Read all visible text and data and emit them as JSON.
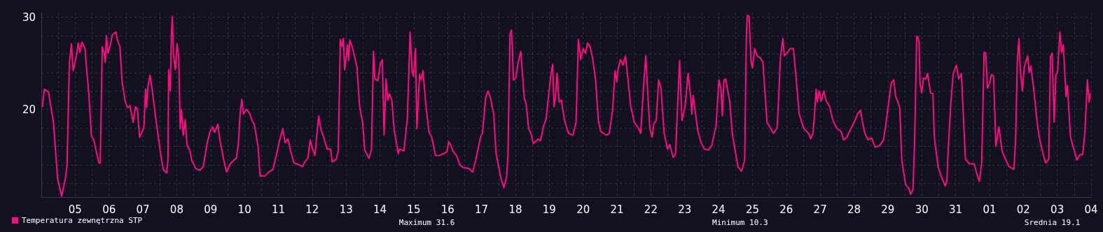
{
  "chart_data": {
    "type": "line",
    "x": [
      "--07-04T12:43",
      "--07-04T14:10",
      "--07-04T17:02",
      "--07-04T20:38",
      "--07-04T23:31",
      "--07-05T02:24",
      "--07-05T05:17",
      "--07-05T06:14",
      "--07-05T07:55",
      "--07-05T09:22",
      "--07-05T10:34",
      "--07-05T12:43",
      "--07-05T14:10",
      "--07-05T15:22",
      "--07-05T16:48",
      "--07-05T18:58",
      "--07-05T19:55",
      "--07-05T21:36",
      "--07-05T22:48",
      "--07-05T23:31",
      "--07-06T01:12",
      "--07-06T02:53",
      "--07-06T04:48",
      "--07-06T05:46",
      "--07-06T07:12",
      "--07-06T08:38",
      "--07-06T09:22",
      "--07-06T10:05",
      "--07-06T11:17",
      "--07-06T12:58",
      "--07-06T14:24",
      "--07-06T16:48",
      "--07-06T18:00",
      "--07-06T19:41",
      "--07-06T21:22",
      "--07-06T23:31",
      "--07-07T01:12",
      "--07-07T02:53",
      "--07-07T05:02",
      "--07-07T06:43",
      "--07-07T08:10",
      "--07-07T09:36",
      "--07-07T11:31",
      "--07-07T12:43",
      "--07-07T13:55",
      "--07-07T14:38",
      "--07-07T15:36",
      "--07-07T17:02",
      "--07-07T18:29",
      "--07-07T20:53",
      "--07-08T00:14",
      "--07-08T02:24",
      "--07-08T04:48",
      "--07-08T05:46",
      "--07-08T06:14",
      "--07-08T07:26",
      "--07-08T08:10",
      "--07-08T08:53",
      "--07-08T09:36",
      "--07-08T11:02",
      "--07-08T12:14",
      "--07-08T13:26",
      "--07-08T14:24",
      "--07-08T15:22",
      "--07-08T16:34",
      "--07-08T18:00",
      "--07-08T19:12",
      "--07-08T21:22",
      "--07-08T22:34",
      "--07-09T01:26",
      "--07-09T04:19",
      "--07-09T06:43",
      "--07-09T09:22",
      "--07-09T11:31",
      "--07-09T13:26",
      "--07-09T14:53",
      "--07-09T17:02",
      "--07-09T18:43",
      "--07-09T21:22",
      "--07-09T23:17",
      "--07-10T01:55",
      "--07-10T04:19",
      "--07-10T06:14",
      "--07-10T07:41",
      "--07-10T08:53",
      "--07-10T10:05",
      "--07-10T11:17",
      "--07-10T13:26",
      "--07-10T15:36",
      "--07-10T17:17",
      "--07-10T18:58",
      "--07-10T21:36",
      "--07-10T23:02",
      "--07-11T02:38",
      "--07-11T05:02",
      "--07-11T08:10",
      "--07-11T10:48",
      "--07-11T13:26",
      "--07-11T15:07",
      "--07-11T16:48",
      "--07-11T18:43",
      "--07-11T20:53",
      "--07-11T23:02",
      "--07-12T02:38",
      "--07-12T05:02",
      "--07-12T06:43",
      "--07-12T08:53",
      "--07-12T10:34",
      "--07-12T12:14",
      "--07-12T13:55",
      "--07-12T16:34",
      "--07-12T18:14",
      "--07-12T19:55",
      "--07-12T22:34",
      "--07-13T00:58",
      "--07-13T02:10",
      "--07-13T05:02",
      "--07-13T06:29",
      "--07-13T07:55",
      "--07-13T09:07",
      "--07-13T10:05",
      "--07-13T11:02",
      "--07-13T12:58",
      "--07-13T13:41",
      "--07-13T14:38",
      "--07-13T16:34",
      "--07-13T19:41",
      "--07-13T21:36",
      "--07-13T23:46",
      "--07-14T01:12",
      "--07-14T04:19",
      "--07-14T06:00",
      "--07-14T07:26",
      "--07-14T08:24",
      "--07-14T10:34",
      "--07-14T12:14",
      "--07-14T13:41",
      "--07-14T14:53",
      "--07-14T16:19",
      "--07-14T17:31",
      "--07-14T18:43",
      "--07-14T20:24",
      "--07-14T22:05",
      "--07-15T00:58",
      "--07-15T01:55",
      "--07-15T05:02",
      "--07-15T07:26",
      "--07-15T09:22",
      "--07-15T10:48",
      "--07-15T11:46",
      "--07-15T13:12",
      "--07-15T14:10",
      "--07-15T16:05",
      "--07-15T17:17",
      "--07-15T18:29",
      "--07-15T20:38",
      "--07-15T22:48",
      "--07-16T00:43",
      "--07-16T03:22",
      "--07-16T06:00",
      "--07-16T09:07",
      "--07-16T11:31",
      "--07-16T12:43",
      "--07-16T14:24",
      "--07-16T15:36",
      "--07-16T18:14",
      "--07-16T20:38",
      "--07-16T23:02",
      "--07-17T02:53",
      "--07-17T05:46",
      "--07-17T08:10",
      "--07-17T11:17",
      "--07-17T12:43",
      "--07-17T14:53",
      "--07-17T16:34",
      "--07-17T18:14",
      "--07-17T20:38",
      "--07-17T22:19",
      "--07-18T01:41",
      "--07-18T03:50",
      "--07-18T05:46",
      "--07-18T06:43",
      "--07-18T08:10",
      "--07-18T09:07",
      "--07-18T09:50",
      "--07-18T10:34",
      "--07-18T12:14",
      "--07-18T13:55",
      "--07-18T15:50",
      "--07-18T18:14",
      "--07-18T19:41",
      "--07-18T21:22",
      "--07-18T23:02",
      "--07-19T00:43",
      "--07-19T04:05",
      "--07-19T05:46",
      "--07-19T08:10",
      "--07-19T09:50",
      "--07-19T10:34",
      "--07-19T13:12",
      "--07-19T14:24",
      "--07-19T15:22",
      "--07-19T16:19",
      "--07-19T17:31",
      "--07-19T18:58",
      "--07-19T20:38",
      "--07-19T22:48",
      "--07-20T01:41",
      "--07-20T04:48",
      "--07-20T06:58",
      "--07-20T08:38",
      "--07-20T10:19",
      "--07-20T12:00",
      "--07-20T13:41",
      "--07-20T15:07",
      "--07-20T17:02",
      "--07-20T18:58",
      "--07-20T20:53",
      "--07-20T22:48",
      "--07-21T00:29",
      "--07-21T04:34",
      "--07-21T06:29",
      "--07-21T08:53",
      "--07-21T10:34",
      "--07-21T11:46",
      "--07-21T12:43",
      "--07-21T14:24",
      "--07-21T16:19",
      "--07-21T18:00",
      "--07-21T19:12",
      "--07-21T21:36",
      "--07-22T00:14",
      "--07-22T03:07",
      "--07-22T04:48",
      "--07-22T06:58",
      "--07-22T08:24",
      "--07-22T09:36",
      "--07-22T11:17",
      "--07-22T12:58",
      "--07-22T14:10",
      "--07-22T15:50",
      "--07-22T17:31",
      "--07-22T19:12",
      "--07-22T21:22",
      "--07-22T23:46",
      "--07-23T01:26",
      "--07-23T03:50",
      "--07-23T05:31",
      "--07-23T07:12",
      "--07-23T08:24",
      "--07-23T10:05",
      "--07-23T12:14",
      "--07-23T14:24",
      "--07-23T16:19",
      "--07-23T17:02",
      "--07-23T18:00",
      "--07-23T19:41",
      "--07-23T21:22",
      "--07-23T23:17",
      "--07-24T01:55",
      "--07-24T04:48",
      "--07-24T07:12",
      "--07-24T09:07",
      "--07-24T10:05",
      "--07-24T12:14",
      "--07-24T13:41",
      "--07-24T14:38",
      "--07-24T15:50",
      "--07-24T17:02",
      "--07-24T19:55",
      "--07-24T21:50",
      "--07-24T23:46",
      "--07-25T01:41",
      "--07-25T04:19",
      "--07-25T06:29",
      "--07-25T07:41",
      "--07-25T08:24",
      "--07-25T09:36",
      "--07-25T11:02",
      "--07-25T12:00",
      "--07-25T13:41",
      "--07-25T15:22",
      "--07-25T17:31",
      "--07-25T19:26",
      "--07-25T22:19",
      "--07-26T00:43",
      "--07-26T02:53",
      "--07-26T05:31",
      "--07-26T07:55",
      "--07-26T09:36",
      "--07-26T10:34",
      "--07-26T12:58",
      "--07-26T14:38",
      "--07-26T17:02",
      "--07-26T18:43",
      "--07-26T21:07",
      "--07-27T00:29",
      "--07-27T03:50",
      "--07-27T05:17",
      "--07-27T06:58",
      "--07-27T07:55",
      "--07-27T09:07",
      "--07-27T09:50",
      "--07-27T11:17",
      "--07-27T12:43",
      "--07-27T14:38",
      "--07-27T16:05",
      "--07-27T18:43",
      "--07-27T20:53",
      "--07-27T23:31",
      "--07-28T02:53",
      "--07-28T04:34",
      "--07-28T06:58",
      "--07-28T10:19",
      "--07-28T12:58",
      "--07-28T14:24",
      "--07-28T16:34",
      "--07-28T17:46",
      "--07-28T19:26",
      "--07-28T21:50",
      "--07-29T00:29",
      "--07-29T02:53",
      "--07-29T06:14",
      "--07-29T08:53",
      "--07-29T10:19",
      "--07-29T12:29",
      "--07-29T14:24",
      "--07-29T16:05",
      "--07-29T17:31",
      "--07-29T20:24",
      "--07-29T21:50",
      "--07-30T00:29",
      "--07-30T02:53",
      "--07-30T04:05",
      "--07-30T05:46",
      "--07-30T06:58",
      "--07-30T08:24",
      "--07-30T09:07",
      "--07-30T10:05",
      "--07-30T10:48",
      "--07-30T12:00",
      "--07-30T13:12",
      "--07-30T14:53",
      "--07-30T16:05",
      "--07-30T18:14",
      "--07-30T19:55",
      "--07-30T20:53",
      "--07-30T23:31",
      "--07-31T01:55",
      "--07-31T04:34",
      "--07-31T05:46",
      "--07-31T06:43",
      "--07-31T08:38",
      "--07-31T10:19",
      "--07-31T12:29",
      "--07-31T14:10",
      "--07-31T16:05",
      "--07-31T17:46",
      "--07-31T18:58",
      "--07-31T21:50",
      "--08-01T01:12",
      "--08-01T02:53",
      "--08-01T04:48",
      "--08-01T06:29",
      "--08-01T08:10",
      "--08-01T09:22",
      "--08-01T10:34",
      "--08-01T12:14",
      "--08-01T13:26",
      "--08-01T14:53",
      "--08-01T16:34",
      "--08-01T18:43",
      "--08-01T20:53",
      "--08-01T23:17",
      "--08-02T01:55",
      "--08-02T05:17",
      "--08-02T06:29",
      "--08-02T07:41",
      "--08-02T08:53",
      "--08-02T09:50",
      "--08-02T11:17",
      "--08-02T12:43",
      "--08-02T13:55",
      "--08-02T15:07",
      "--08-02T16:05",
      "--08-02T17:17",
      "--08-02T19:12",
      "--08-02T21:50",
      "--08-02T23:17",
      "--08-03T01:55",
      "--08-03T03:50",
      "--08-03T06:00",
      "--08-03T07:12",
      "--08-03T08:24",
      "--08-03T09:50",
      "--08-03T11:02",
      "--08-03T12:14",
      "--08-03T13:55",
      "--08-03T15:07",
      "--08-03T16:19",
      "--08-03T18:14",
      "--08-03T19:12",
      "--08-03T21:22",
      "--08-04T00:14",
      "--08-04T01:55",
      "--08-04T04:05",
      "--08-04T06:00",
      "--08-04T07:41",
      "--08-04T09:22",
      "--08-04T10:34",
      "--08-04T11:31"
    ],
    "series": [
      {
        "name": "Temperatura zewnętrzna STP",
        "color": "#ff0a84",
        "values": [
          20.3,
          22.2,
          21.9,
          18.6,
          12.5,
          10.6,
          12.7,
          14.0,
          25.1,
          27.1,
          24.2,
          25.7,
          27.2,
          26.2,
          27.3,
          26.6,
          24.7,
          21.8,
          18.9,
          17.1,
          16.7,
          15.5,
          14.2,
          14.2,
          26.8,
          26.1,
          25.1,
          28.0,
          26.1,
          27.0,
          28.1,
          28.4,
          27.5,
          26.8,
          22.9,
          20.8,
          20.2,
          20.4,
          18.6,
          20.3,
          20.0,
          17.0,
          17.6,
          18.1,
          22.2,
          20.2,
          22.5,
          23.7,
          22.3,
          19.3,
          15.5,
          13.5,
          13.1,
          14.5,
          24.3,
          22.0,
          28.1,
          30.1,
          26.0,
          24.3,
          27.1,
          25.6,
          17.9,
          20.0,
          17.2,
          18.9,
          16.2,
          15.5,
          14.5,
          13.6,
          13.4,
          13.8,
          16.2,
          17.6,
          18.1,
          17.5,
          18.4,
          16.6,
          14.5,
          13.2,
          14.1,
          14.5,
          14.7,
          16.4,
          19.5,
          21.1,
          19.5,
          20.0,
          19.6,
          18.8,
          18.4,
          16.0,
          12.8,
          12.8,
          13.2,
          13.5,
          15.2,
          17.0,
          17.9,
          16.4,
          16.8,
          15.4,
          14.2,
          14.0,
          13.8,
          14.3,
          14.7,
          16.7,
          15.7,
          15.0,
          19.3,
          17.8,
          17.1,
          15.7,
          15.7,
          14.3,
          14.6,
          15.5,
          27.6,
          26.8,
          27.7,
          24.3,
          27.0,
          25.3,
          27.5,
          26.7,
          24.6,
          20.3,
          18.5,
          15.6,
          14.7,
          15.7,
          26.3,
          23.3,
          23.1,
          24.9,
          25.4,
          17.2,
          23.3,
          21.0,
          21.7,
          21.0,
          17.8,
          15.2,
          15.7,
          15.5,
          19.1,
          28.4,
          24.1,
          23.6,
          26.6,
          17.9,
          23.8,
          23.2,
          24.2,
          20.3,
          17.5,
          17.0,
          15.0,
          15.0,
          15.2,
          15.4,
          16.5,
          16.1,
          15.5,
          15.0,
          14.0,
          13.7,
          13.6,
          13.2,
          14.7,
          17.0,
          17.5,
          21.3,
          22.0,
          21.3,
          19.5,
          15.2,
          12.6,
          11.5,
          12.7,
          15.0,
          28.1,
          28.6,
          26.8,
          23.2,
          23.4,
          25.1,
          26.3,
          21.3,
          20.5,
          17.9,
          17.4,
          16.3,
          16.8,
          16.6,
          18.3,
          19.0,
          20.2,
          23.8,
          24.9,
          20.3,
          21.3,
          23.9,
          20.8,
          21.0,
          18.8,
          17.4,
          17.2,
          18.6,
          27.6,
          25.4,
          26.6,
          26.1,
          27.2,
          26.8,
          25.3,
          23.1,
          18.8,
          17.6,
          17.2,
          17.4,
          19.9,
          24.2,
          23.0,
          24.3,
          25.4,
          24.8,
          25.8,
          24.1,
          20.5,
          18.6,
          18.0,
          17.4,
          22.8,
          25.8,
          22.3,
          17.9,
          17.0,
          18.5,
          18.8,
          23.2,
          22.3,
          17.5,
          15.7,
          16.2,
          14.8,
          15.2,
          21.3,
          25.3,
          18.8,
          20.3,
          23.9,
          21.2,
          19.5,
          21.5,
          19.5,
          17.6,
          16.5,
          15.7,
          15.6,
          16.1,
          17.5,
          18.0,
          23.2,
          22.2,
          19.3,
          23.2,
          23.3,
          20.8,
          17.2,
          15.5,
          13.8,
          13.3,
          14.5,
          28.1,
          30.2,
          30.1,
          25.2,
          24.5,
          26.6,
          25.8,
          25.6,
          25.1,
          18.6,
          18.0,
          17.4,
          18.0,
          25.8,
          27.7,
          25.8,
          26.2,
          26.6,
          26.6,
          23.8,
          19.5,
          17.9,
          17.4,
          16.8,
          17.5,
          19.3,
          22.2,
          20.8,
          22.0,
          20.9,
          22.0,
          21.0,
          20.3,
          18.9,
          18.0,
          17.6,
          16.7,
          17.0,
          18.1,
          18.9,
          19.5,
          19.9,
          18.8,
          17.5,
          16.7,
          16.9,
          15.9,
          16.1,
          16.7,
          18.1,
          20.7,
          22.9,
          23.2,
          21.4,
          20.2,
          14.5,
          11.9,
          11.4,
          10.8,
          11.3,
          16.7,
          27.9,
          27.9,
          27.3,
          22.8,
          21.8,
          23.4,
          23.3,
          23.9,
          21.8,
          21.7,
          17.0,
          13.8,
          12.7,
          11.7,
          12.2,
          15.6,
          20.8,
          23.9,
          24.8,
          23.3,
          23.9,
          18.4,
          14.6,
          14.1,
          14.1,
          13.1,
          12.2,
          14.2,
          26.2,
          26.1,
          22.3,
          22.9,
          23.8,
          23.6,
          16.0,
          18.1,
          15.5,
          14.6,
          13.8,
          13.5,
          16.5,
          25.1,
          27.7,
          24.3,
          22.0,
          24.6,
          25.3,
          25.8,
          24.0,
          24.7,
          22.4,
          18.5,
          17.0,
          15.2,
          14.2,
          14.6,
          25.7,
          26.1,
          18.6,
          23.7,
          24.1,
          28.4,
          26.2,
          27.0,
          21.4,
          22.6,
          17.0,
          15.5,
          14.5,
          15.1,
          15.1,
          17.6,
          23.2,
          20.8,
          21.7
        ]
      }
    ],
    "xlim": [
      "--07-04T12:00",
      "--08-04T12:00"
    ],
    "xticks": [
      {
        "value": "--07-05",
        "label": null
      },
      {
        "value": "--07-05T12:00",
        "label": "05"
      },
      {
        "value": "--07-06",
        "label": null
      },
      {
        "value": "--07-06T12:00",
        "label": "06"
      },
      {
        "value": "--07-07",
        "label": null
      },
      {
        "value": "--07-07T12:00",
        "label": "07"
      },
      {
        "value": "--07-08",
        "label": null
      },
      {
        "value": "--07-08T12:00",
        "label": "08"
      },
      {
        "value": "--07-09",
        "label": null
      },
      {
        "value": "--07-09T12:00",
        "label": "09"
      },
      {
        "value": "--07-10",
        "label": null
      },
      {
        "value": "--07-10T12:00",
        "label": "10"
      },
      {
        "value": "--07-11",
        "label": null
      },
      {
        "value": "--07-11T12:00",
        "label": "11"
      },
      {
        "value": "--07-12",
        "label": null
      },
      {
        "value": "--07-12T12:00",
        "label": "12"
      },
      {
        "value": "--07-13",
        "label": null
      },
      {
        "value": "--07-13T12:00",
        "label": "13"
      },
      {
        "value": "--07-14",
        "label": null
      },
      {
        "value": "--07-14T12:00",
        "label": "14"
      },
      {
        "value": "--07-15",
        "label": null
      },
      {
        "value": "--07-15T12:00",
        "label": "15"
      },
      {
        "value": "--07-16",
        "label": null
      },
      {
        "value": "--07-16T12:00",
        "label": "16"
      },
      {
        "value": "--07-17",
        "label": null
      },
      {
        "value": "--07-17T12:00",
        "label": "17"
      },
      {
        "value": "--07-18",
        "label": null
      },
      {
        "value": "--07-18T12:00",
        "label": "18"
      },
      {
        "value": "--07-19",
        "label": null
      },
      {
        "value": "--07-19T12:00",
        "label": "19"
      },
      {
        "value": "--07-20",
        "label": null
      },
      {
        "value": "--07-20T12:00",
        "label": "20"
      },
      {
        "value": "--07-21",
        "label": null
      },
      {
        "value": "--07-21T12:00",
        "label": "21"
      },
      {
        "value": "--07-22",
        "label": null
      },
      {
        "value": "--07-22T12:00",
        "label": "22"
      },
      {
        "value": "--07-23",
        "label": null
      },
      {
        "value": "--07-23T12:00",
        "label": "23"
      },
      {
        "value": "--07-24",
        "label": null
      },
      {
        "value": "--07-24T12:00",
        "label": "24"
      },
      {
        "value": "--07-25",
        "label": null
      },
      {
        "value": "--07-25T12:00",
        "label": "25"
      },
      {
        "value": "--07-26",
        "label": null
      },
      {
        "value": "--07-26T12:00",
        "label": "26"
      },
      {
        "value": "--07-27",
        "label": null
      },
      {
        "value": "--07-27T12:00",
        "label": "27"
      },
      {
        "value": "--07-28",
        "label": null
      },
      {
        "value": "--07-28T12:00",
        "label": "28"
      },
      {
        "value": "--07-29",
        "label": null
      },
      {
        "value": "--07-29T12:00",
        "label": "29"
      },
      {
        "value": "--07-30",
        "label": null
      },
      {
        "value": "--07-30T12:00",
        "label": "30"
      },
      {
        "value": "--07-31",
        "label": null
      },
      {
        "value": "--07-31T12:00",
        "label": "31"
      },
      {
        "value": "--08-01",
        "label": null
      },
      {
        "value": "--08-01T12:00",
        "label": "01"
      },
      {
        "value": "--08-02",
        "label": null
      },
      {
        "value": "--08-02T12:00",
        "label": "02"
      },
      {
        "value": "--08-03",
        "label": null
      },
      {
        "value": "--08-03T12:00",
        "label": "03"
      },
      {
        "value": "--08-04",
        "label": null
      },
      {
        "value": "--08-04T12:00",
        "label": "04"
      }
    ],
    "ylim": [
      10.5,
      30.5
    ],
    "yticks": [
      {
        "value": 12,
        "label": null
      },
      {
        "value": 14,
        "label": null
      },
      {
        "value": 16,
        "label": null
      },
      {
        "value": 18,
        "label": null
      },
      20,
      {
        "value": 22,
        "label": null
      },
      {
        "value": 24,
        "label": null
      },
      {
        "value": 26,
        "label": null
      },
      {
        "value": 28,
        "label": null
      },
      30
    ],
    "grid": true,
    "legend": "bottom left",
    "marker": "none",
    "line_style": "solid",
    "annotations": [
      "Maximum 31.6",
      "Minimum 10.3",
      "Srednia 19.1"
    ]
  }
}
